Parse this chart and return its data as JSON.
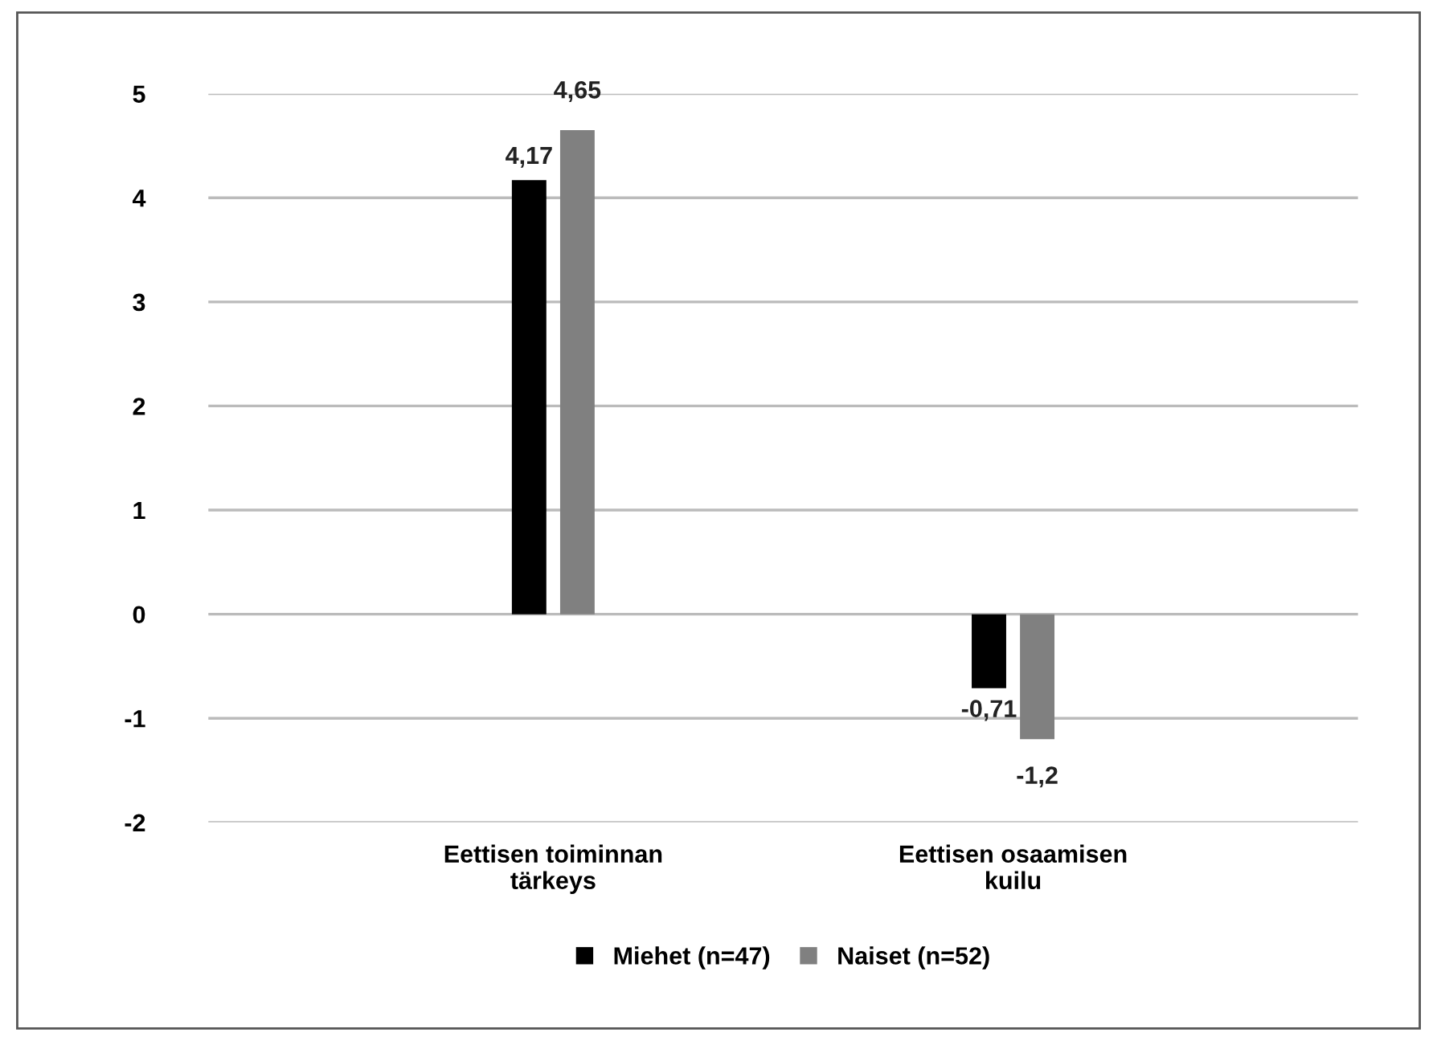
{
  "chart_data": {
    "type": "bar",
    "categories": [
      "Eettisen toiminnan\ntärkeys",
      "Eettisen osaamisen\nkuilu"
    ],
    "series": [
      {
        "name": "Miehet (n=47)",
        "color": "#000000",
        "values": [
          4.17,
          -0.71
        ],
        "value_labels": [
          "4,17",
          "-0,71"
        ]
      },
      {
        "name": "Naiset (n=52)",
        "color": "#808080",
        "values": [
          4.65,
          -1.2
        ],
        "value_labels": [
          "4,65",
          "-1,2"
        ]
      }
    ],
    "ylim": [
      -2,
      5
    ],
    "yticks": [
      -2,
      -1,
      0,
      1,
      2,
      3,
      4,
      5
    ],
    "grid": "y",
    "legend": "bottom"
  }
}
